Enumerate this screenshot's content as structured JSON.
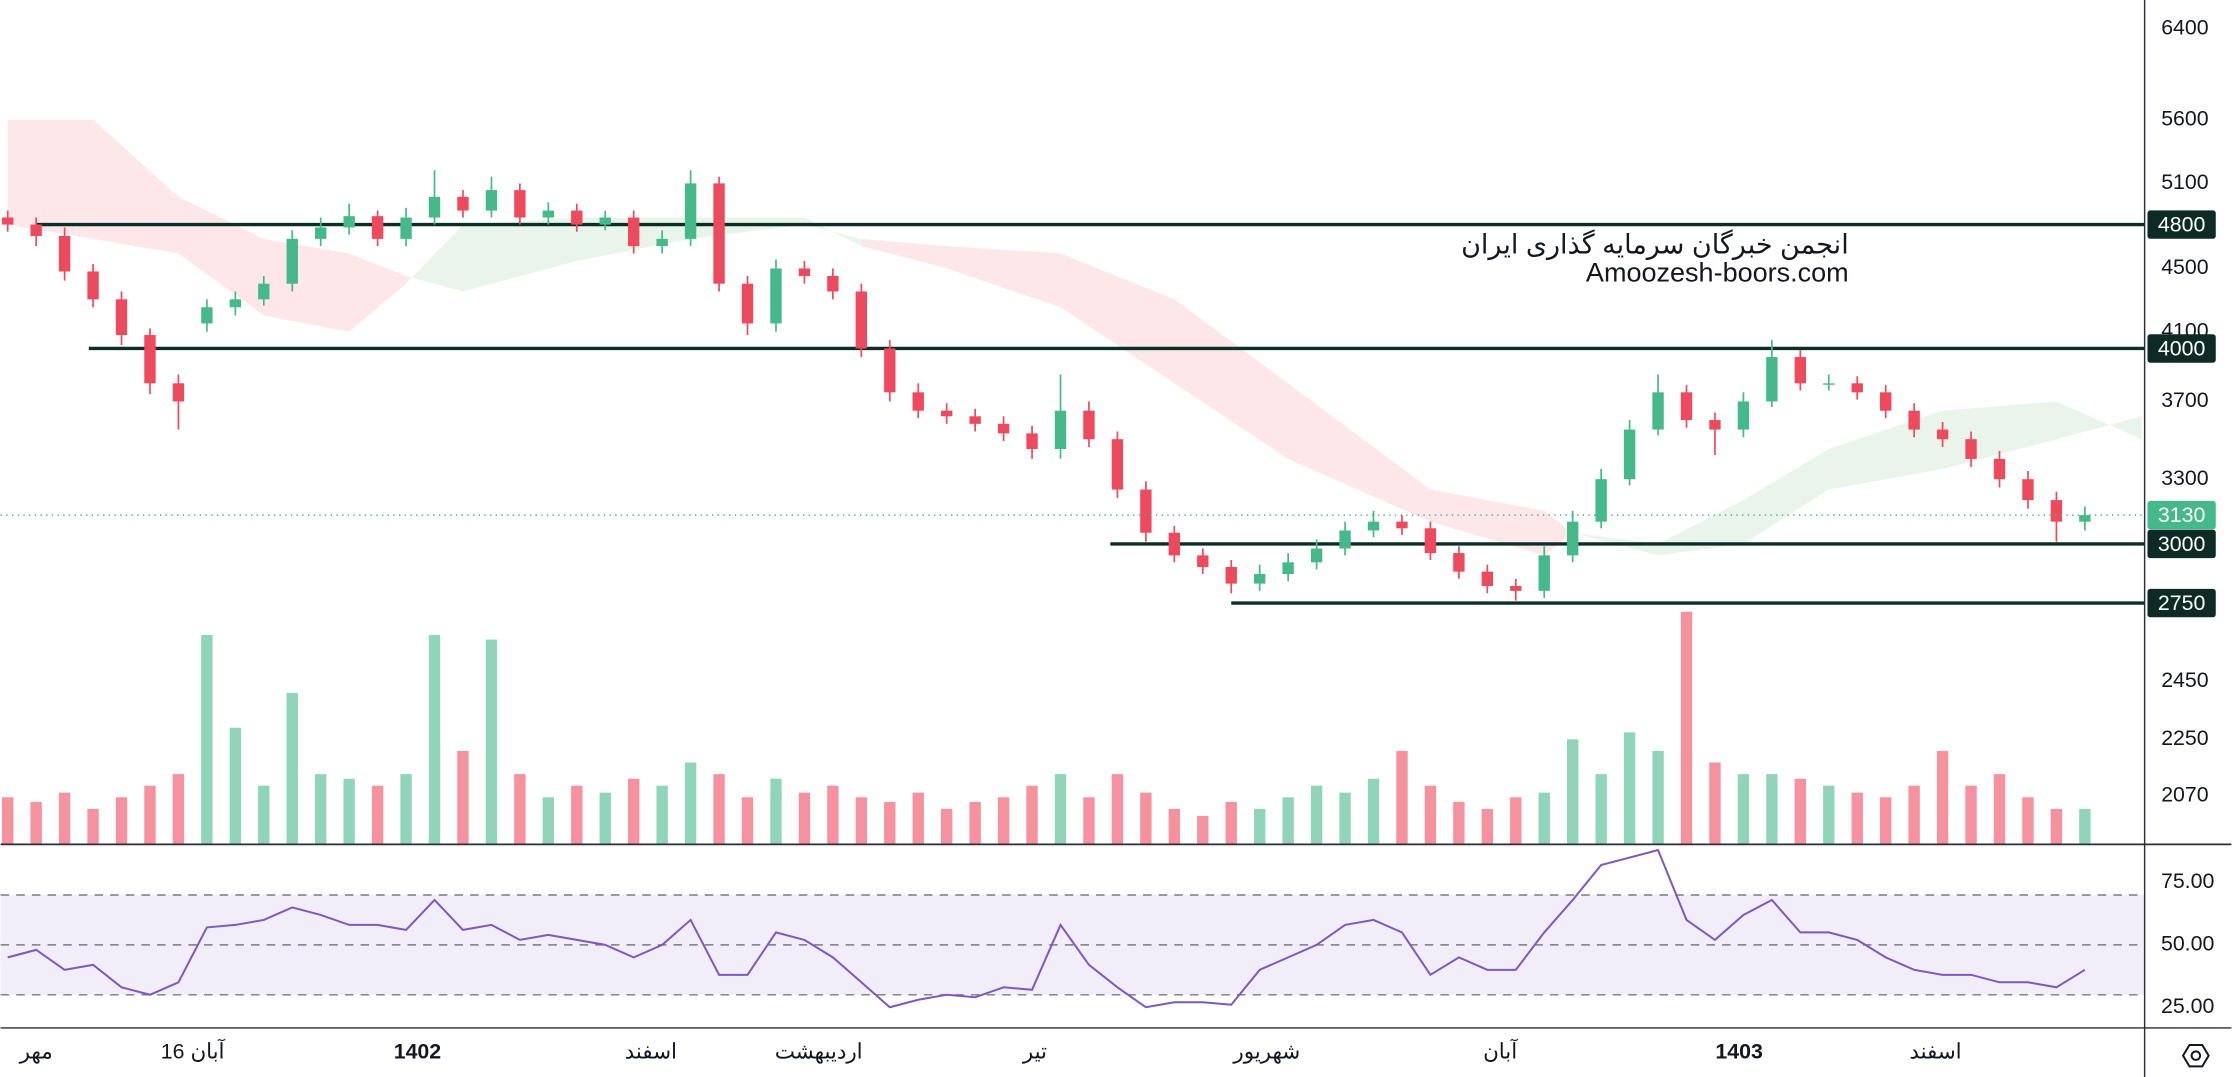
{
  "chart_data": {
    "type": "candlestick",
    "scale": "log",
    "ylim": [
      1930,
      6680
    ],
    "yticks": [
      2070,
      2250,
      2450,
      2750,
      3300,
      3700,
      4100,
      4500,
      5100,
      5600,
      6400
    ],
    "up_color": "#46b98a",
    "down_color": "#ee4a5e",
    "watermark": [
      "انجمن خبرگان سرمایه گذاری ایران",
      "Amoozesh-boors.com"
    ],
    "xticks": [
      {
        "value": 1,
        "label": "مهر"
      },
      {
        "value": 6.5,
        "label": "16 آبان"
      },
      {
        "value": 14.4,
        "label": "1402",
        "major": true
      },
      {
        "value": 22.6,
        "label": "اسفند"
      },
      {
        "value": 28.5,
        "label": "اردیبهشت"
      },
      {
        "value": 36.1,
        "label": "تیر"
      },
      {
        "value": 44.25,
        "label": "شهریور"
      },
      {
        "value": 52.45,
        "label": "آبان"
      },
      {
        "value": 60.85,
        "label": "1403",
        "major": true
      },
      {
        "value": 67.75,
        "label": "اسفند"
      }
    ],
    "open": [
      4850,
      4800,
      4720,
      4480,
      4300,
      4080,
      3800,
      4150,
      4250,
      4300,
      4400,
      4700,
      4780,
      4860,
      4700,
      4850,
      5000,
      4900,
      5050,
      4850,
      4900,
      4800,
      4850,
      4650,
      4700,
      5100,
      4400,
      4150,
      4500,
      4450,
      4350,
      4000,
      3750,
      3650,
      3620,
      3580,
      3530,
      3450,
      3650,
      3500,
      3250,
      3050,
      2950,
      2900,
      2830,
      2870,
      2920,
      2980,
      3060,
      3100,
      3070,
      2960,
      2880,
      2820,
      2800,
      2950,
      3100,
      3300,
      3550,
      3750,
      3600,
      3550,
      3700,
      3950,
      3800,
      3800,
      3750,
      3650,
      3550,
      3500,
      3400,
      3300,
      3200,
      3100
    ],
    "high": [
      4900,
      4850,
      4780,
      4530,
      4350,
      4120,
      3850,
      4300,
      4350,
      4450,
      4760,
      4850,
      4950,
      4900,
      4920,
      5200,
      5050,
      5150,
      5100,
      4960,
      4950,
      4900,
      4900,
      4760,
      5200,
      5150,
      4450,
      4560,
      4550,
      4500,
      4400,
      4050,
      3800,
      3690,
      3660,
      3620,
      3570,
      3850,
      3700,
      3540,
      3290,
      3080,
      2980,
      2930,
      2910,
      2960,
      3020,
      3100,
      3150,
      3130,
      3100,
      2990,
      2910,
      2850,
      2990,
      3150,
      3350,
      3600,
      3850,
      3790,
      3640,
      3750,
      4050,
      3990,
      3850,
      3840,
      3790,
      3690,
      3590,
      3540,
      3440,
      3340,
      3240,
      3170
    ],
    "low": [
      4750,
      4650,
      4420,
      4250,
      4020,
      3740,
      3550,
      4100,
      4200,
      4260,
      4350,
      4650,
      4730,
      4650,
      4650,
      4800,
      4850,
      4850,
      4800,
      4800,
      4750,
      4760,
      4600,
      4600,
      4650,
      4350,
      4080,
      4100,
      4400,
      4300,
      3950,
      3700,
      3610,
      3580,
      3540,
      3490,
      3400,
      3400,
      3460,
      3210,
      3010,
      2920,
      2870,
      2790,
      2800,
      2840,
      2890,
      2950,
      3030,
      3040,
      2930,
      2850,
      2790,
      2760,
      2770,
      2920,
      3070,
      3270,
      3520,
      3560,
      3420,
      3510,
      3670,
      3760,
      3760,
      3710,
      3610,
      3510,
      3460,
      3360,
      3260,
      3160,
      3010,
      3060
    ],
    "close": [
      4800,
      4720,
      4480,
      4300,
      4080,
      3800,
      3700,
      4250,
      4300,
      4400,
      4700,
      4780,
      4860,
      4700,
      4850,
      5000,
      4900,
      5050,
      4850,
      4900,
      4800,
      4850,
      4650,
      4700,
      5100,
      4400,
      4150,
      4500,
      4450,
      4350,
      4000,
      3750,
      3650,
      3620,
      3580,
      3530,
      3450,
      3650,
      3500,
      3250,
      3050,
      2950,
      2900,
      2830,
      2870,
      2920,
      2980,
      3060,
      3100,
      3070,
      2960,
      2880,
      2820,
      2800,
      2950,
      3100,
      3300,
      3550,
      3750,
      3600,
      3550,
      3700,
      3950,
      3800,
      3800,
      3750,
      3650,
      3550,
      3500,
      3400,
      3300,
      3200,
      3100,
      3130
    ],
    "volume": {
      "vlim": [
        0,
        100
      ],
      "values": [
        20,
        18,
        22,
        15,
        20,
        25,
        30,
        90,
        50,
        25,
        65,
        30,
        28,
        25,
        30,
        90,
        40,
        88,
        30,
        20,
        25,
        22,
        28,
        25,
        35,
        30,
        20,
        28,
        22,
        25,
        20,
        18,
        22,
        15,
        18,
        20,
        25,
        30,
        20,
        30,
        22,
        15,
        12,
        18,
        15,
        20,
        25,
        22,
        28,
        40,
        25,
        18,
        15,
        20,
        22,
        45,
        30,
        48,
        40,
        100,
        35,
        30,
        30,
        28,
        25,
        22,
        20,
        25,
        40,
        25,
        30,
        20,
        15,
        15
      ]
    },
    "levels": [
      {
        "value": 4800,
        "start": 1
      },
      {
        "value": 4000,
        "start": 2.85
      },
      {
        "value": 3000,
        "start": 38.75
      },
      {
        "value": 2750,
        "start": 43
      }
    ],
    "cloud": {
      "up_color": "rgba(76,175,80,0.12)",
      "down_color": "rgba(242,54,69,0.12)",
      "x": [
        0,
        3,
        6,
        9,
        12,
        14,
        16,
        20,
        24,
        28,
        30,
        33,
        37,
        41,
        45,
        50,
        54,
        55,
        58,
        61,
        64,
        68,
        72,
        75
      ],
      "a": [
        4800,
        4700,
        4600,
        4200,
        4100,
        4400,
        4800,
        4850,
        4850,
        4850,
        4650,
        4500,
        4250,
        3800,
        3400,
        3100,
        2950,
        3050,
        3000,
        3200,
        3450,
        3650,
        3700,
        3500
      ],
      "b": [
        5600,
        5600,
        5000,
        4700,
        4600,
        4450,
        4350,
        4550,
        4700,
        4800,
        4700,
        4650,
        4600,
        4300,
        3800,
        3250,
        3150,
        3050,
        2950,
        3000,
        3250,
        3350,
        3500,
        3620
      ]
    },
    "rsi": {
      "color": "#7e57c2",
      "ylim": [
        17,
        90
      ],
      "yticks": [
        {
          "value": 25,
          "label": "25.00"
        },
        {
          "value": 50,
          "label": "50.00"
        },
        {
          "value": 75,
          "label": "75.00"
        }
      ],
      "band": [
        30,
        70
      ],
      "levels": [
        30,
        50,
        70
      ],
      "values": [
        45,
        48,
        40,
        42,
        33,
        30,
        35,
        57,
        58,
        60,
        65,
        62,
        58,
        58,
        56,
        68,
        56,
        58,
        52,
        54,
        52,
        50,
        45,
        50,
        60,
        38,
        38,
        55,
        52,
        45,
        35,
        25,
        28,
        30,
        29,
        33,
        32,
        58,
        42,
        33,
        25,
        27,
        27,
        26,
        40,
        45,
        50,
        58,
        60,
        55,
        38,
        45,
        40,
        40,
        55,
        68,
        82,
        85,
        88,
        60,
        52,
        62,
        68,
        55,
        55,
        52,
        45,
        40,
        38,
        38,
        35,
        35,
        33,
        40
      ]
    }
  }
}
